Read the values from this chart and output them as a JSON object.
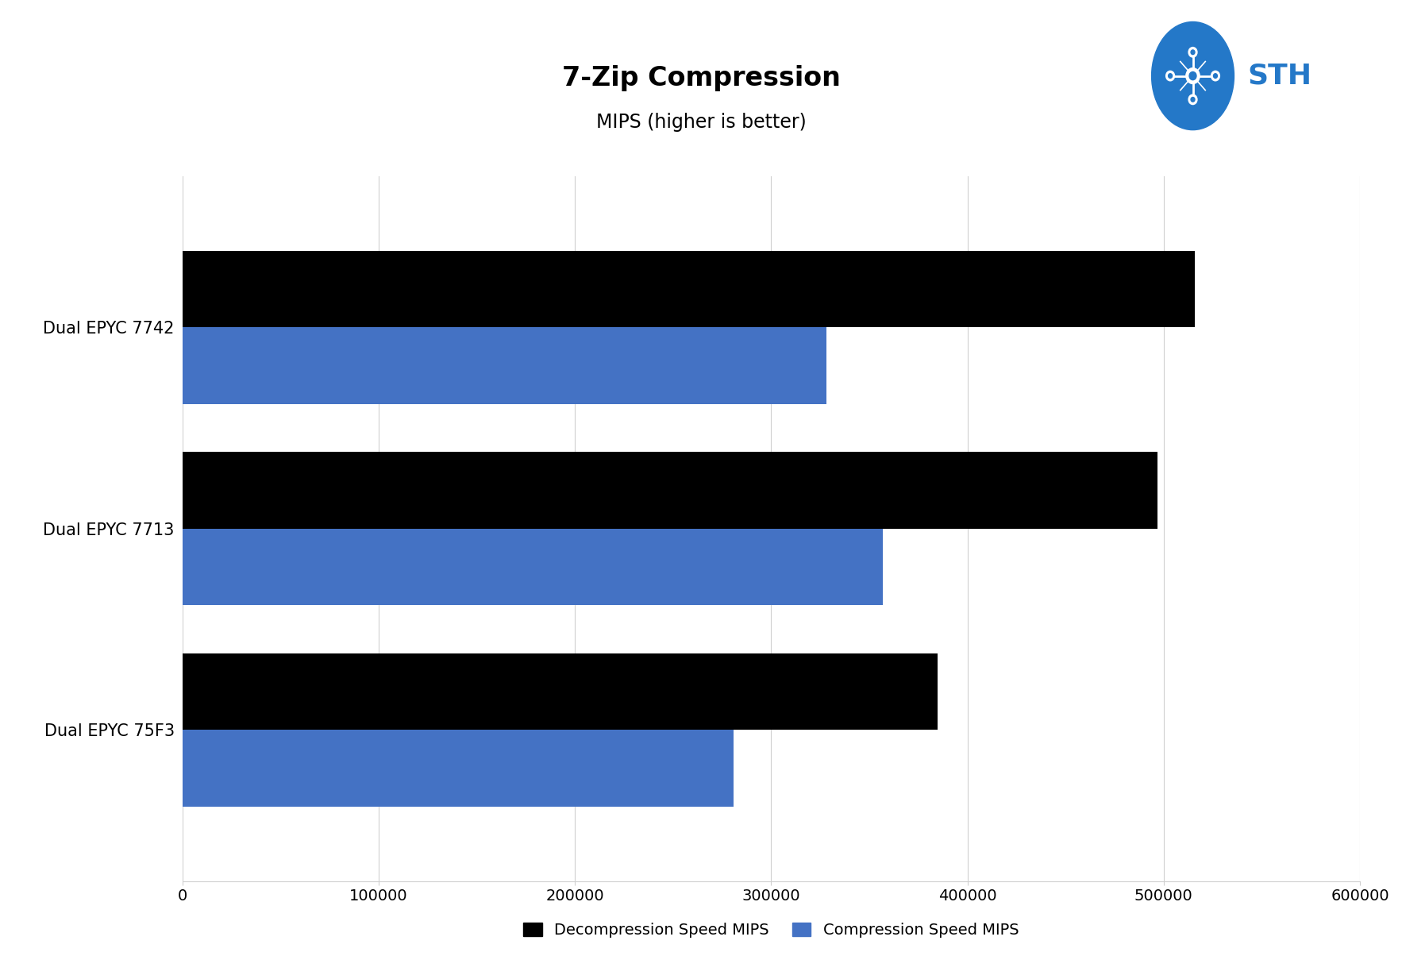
{
  "title": "7-Zip Compression",
  "subtitle": "MIPS (higher is better)",
  "categories": [
    "Dual EPYC 75F3",
    "Dual EPYC 7713",
    "Dual EPYC 7742"
  ],
  "decompression": [
    385000,
    497000,
    516000
  ],
  "compression": [
    281000,
    357000,
    328000
  ],
  "decompression_color": "#000000",
  "compression_color": "#4472C4",
  "background_color": "#ffffff",
  "xlim": [
    0,
    600000
  ],
  "xticks": [
    0,
    100000,
    200000,
    300000,
    400000,
    500000,
    600000
  ],
  "xtick_labels": [
    "0",
    "100000",
    "200000",
    "300000",
    "400000",
    "500000",
    "600000"
  ],
  "title_fontsize": 24,
  "subtitle_fontsize": 17,
  "label_fontsize": 15,
  "tick_fontsize": 14,
  "legend_fontsize": 14,
  "legend_labels": [
    "Decompression Speed MIPS",
    "Compression Speed MIPS"
  ],
  "bar_height": 0.38,
  "grid_color": "#d0d0d0",
  "logo_circle_color": "#2478c8",
  "logo_text_color": "#2478c8"
}
